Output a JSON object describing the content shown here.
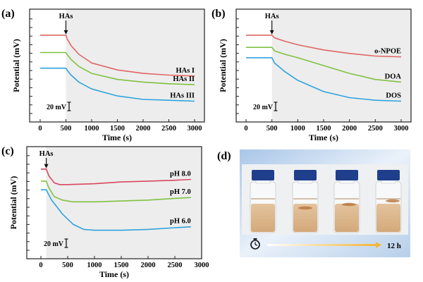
{
  "chart_data": [
    {
      "panel_label": "(a)",
      "type": "line",
      "xlabel": "Time (s)",
      "ylabel": "Potential (mV)",
      "xlim": [
        -250,
        3250
      ],
      "xticks": [
        0,
        500,
        1000,
        1500,
        2000,
        2500,
        3000
      ],
      "ylim": [
        0,
        130
      ],
      "y_ticks_labeled": false,
      "shaded_region_start": 500,
      "annotation": {
        "text": "HAs",
        "x": 500
      },
      "scale_bar": "20 mV",
      "series": [
        {
          "name": "HAs I",
          "color": "#e06666",
          "x": [
            0,
            500,
            520,
            600,
            750,
            1000,
            1500,
            2000,
            2500,
            3000
          ],
          "y": [
            100,
            100,
            96,
            88,
            78,
            68,
            60,
            56,
            54,
            53
          ]
        },
        {
          "name": "HAs II",
          "color": "#7fc241",
          "x": [
            0,
            500,
            520,
            600,
            750,
            1000,
            1500,
            2000,
            2500,
            3000
          ],
          "y": [
            80,
            80,
            78,
            72,
            64,
            56,
            49,
            46,
            44,
            43
          ]
        },
        {
          "name": "HAs III",
          "color": "#2fa3dd",
          "x": [
            0,
            500,
            520,
            600,
            750,
            1000,
            1500,
            2000,
            2500,
            3000
          ],
          "y": [
            62,
            62,
            60,
            54,
            46,
            38,
            30,
            26,
            25,
            24
          ]
        }
      ]
    },
    {
      "panel_label": "(b)",
      "type": "line",
      "xlabel": "Time (s)",
      "ylabel": "Potential (mV)",
      "xlim": [
        -250,
        3250
      ],
      "xticks": [
        0,
        500,
        1000,
        1500,
        2000,
        2500,
        3000
      ],
      "ylim": [
        0,
        130
      ],
      "y_ticks_labeled": false,
      "shaded_region_start": 500,
      "annotation": {
        "text": "HAs",
        "x": 500
      },
      "scale_bar": "20 mV",
      "series": [
        {
          "name": "o-NPOE",
          "color": "#e06666",
          "x": [
            0,
            500,
            550,
            750,
            1000,
            1500,
            2000,
            2500,
            3000
          ],
          "y": [
            100,
            100,
            97,
            93,
            89,
            83,
            79,
            76,
            75
          ]
        },
        {
          "name": "DOA",
          "color": "#7fc241",
          "x": [
            0,
            500,
            550,
            750,
            1000,
            1500,
            2000,
            2500,
            3000
          ],
          "y": [
            86,
            86,
            82,
            78,
            74,
            65,
            56,
            49,
            46
          ]
        },
        {
          "name": "DOS",
          "color": "#2fa3dd",
          "x": [
            0,
            500,
            550,
            750,
            1000,
            1500,
            2000,
            2500,
            3000
          ],
          "y": [
            74,
            74,
            68,
            58,
            48,
            35,
            28,
            25,
            24
          ]
        }
      ]
    },
    {
      "panel_label": "(c)",
      "type": "line",
      "xlabel": "Time (s)",
      "ylabel": "Potential (mV)",
      "xlim": [
        -250,
        3000
      ],
      "xticks": [
        0,
        500,
        1000,
        1500,
        2000,
        2500,
        3000
      ],
      "ylim": [
        0,
        130
      ],
      "y_ticks_labeled": false,
      "shaded_region_start": 100,
      "annotation": {
        "text": "HAs",
        "x": 100
      },
      "scale_bar": "20 mV",
      "series": [
        {
          "name": "pH 8.0",
          "color": "#d9475f",
          "x": [
            0,
            100,
            150,
            250,
            350,
            500,
            1000,
            1500,
            2000,
            2500,
            2800
          ],
          "y": [
            104,
            104,
            96,
            88,
            86,
            86,
            87,
            89,
            90,
            91,
            92
          ]
        },
        {
          "name": "pH 7.0",
          "color": "#7fc241",
          "x": [
            0,
            100,
            150,
            250,
            400,
            600,
            1000,
            1500,
            2000,
            2500,
            2800
          ],
          "y": [
            90,
            90,
            82,
            72,
            68,
            66,
            66,
            67,
            68,
            70,
            71
          ]
        },
        {
          "name": "pH 6.0",
          "color": "#2fa3dd",
          "x": [
            0,
            100,
            200,
            400,
            600,
            800,
            1000,
            1500,
            2000,
            2500,
            2800
          ],
          "y": [
            80,
            80,
            68,
            52,
            40,
            34,
            33,
            33,
            34,
            36,
            37
          ]
        }
      ]
    }
  ],
  "panel_d": {
    "panel_label": "(d)",
    "timer_icon": "stopwatch-icon",
    "time_label": "12 h",
    "vial_count": 4
  }
}
